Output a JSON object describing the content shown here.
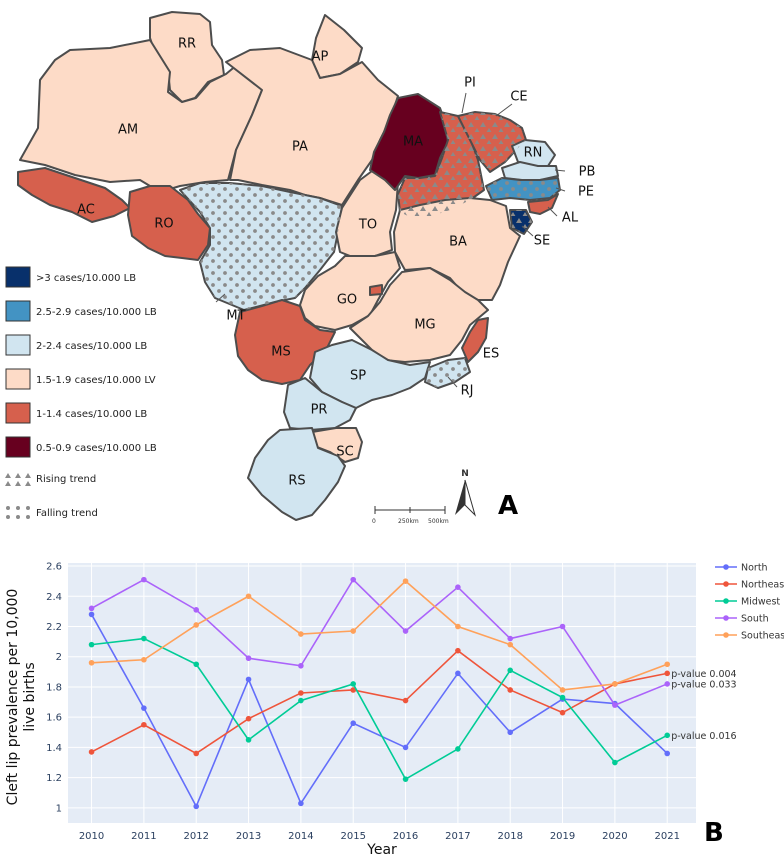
{
  "map": {
    "panel_letter": "A",
    "north_label": "N",
    "scale_labels": [
      "0",
      "250km",
      "500km"
    ],
    "states": [
      {
        "code": "RR",
        "category": "c4"
      },
      {
        "code": "AP",
        "category": "c4"
      },
      {
        "code": "AM",
        "category": "c4"
      },
      {
        "code": "PA",
        "category": "c4"
      },
      {
        "code": "AC",
        "category": "c5"
      },
      {
        "code": "RO",
        "category": "c5"
      },
      {
        "code": "MT",
        "category": "c3",
        "trend": "falling"
      },
      {
        "code": "TO",
        "category": "c4"
      },
      {
        "code": "MA",
        "category": "c6"
      },
      {
        "code": "PI",
        "category": "c5",
        "trend": "rising"
      },
      {
        "code": "CE",
        "category": "c5",
        "trend": "rising"
      },
      {
        "code": "RN",
        "category": "c3"
      },
      {
        "code": "PB",
        "category": "c3"
      },
      {
        "code": "PE",
        "category": "c2",
        "trend": "falling"
      },
      {
        "code": "AL",
        "category": "c5"
      },
      {
        "code": "SE",
        "category": "c1",
        "trend": "rising"
      },
      {
        "code": "BA",
        "category": "c4"
      },
      {
        "code": "GO",
        "category": "c4"
      },
      {
        "code": "MG",
        "category": "c4"
      },
      {
        "code": "ES",
        "category": "c5"
      },
      {
        "code": "MS",
        "category": "c5"
      },
      {
        "code": "SP",
        "category": "c3"
      },
      {
        "code": "RJ",
        "category": "c3",
        "trend": "falling"
      },
      {
        "code": "PR",
        "category": "c3"
      },
      {
        "code": "SC",
        "category": "c4"
      },
      {
        "code": "RS",
        "category": "c3"
      }
    ],
    "legend": [
      {
        "key": "c1",
        "label": ">3 cases/10.000 LB",
        "color": "#08306b"
      },
      {
        "key": "c2",
        "label": "2.5-2.9 cases/10.000 LB",
        "color": "#4393c3"
      },
      {
        "key": "c3",
        "label": "2-2.4 cases/10.000 LB",
        "color": "#d1e5f0"
      },
      {
        "key": "c4",
        "label": "1.5-1.9 cases/10.000 LV",
        "color": "#fddbc7"
      },
      {
        "key": "c5",
        "label": "1-1.4 cases/10.000 LB",
        "color": "#d6604d"
      },
      {
        "key": "c6",
        "label": "0.5-0.9 cases/10.000 LB",
        "color": "#67001f"
      }
    ],
    "trend_legend": {
      "rising": "Rising trend",
      "falling": "Falling trend"
    }
  },
  "chart_data": {
    "type": "line",
    "panel_letter": "B",
    "xlabel": "Year",
    "ylabel_lines": [
      "Cleft lip prevalence per 10,000",
      "live births"
    ],
    "x": [
      2010,
      2011,
      2012,
      2013,
      2014,
      2015,
      2016,
      2017,
      2018,
      2019,
      2020,
      2021
    ],
    "ylim": [
      0.9,
      2.62
    ],
    "yticks": [
      1,
      1.2,
      1.4,
      1.6,
      1.8,
      2,
      2.2,
      2.4,
      2.6
    ],
    "ytick_labels": [
      "1",
      "1.2",
      "1.4",
      "1.6",
      "1.8",
      "2",
      "2.2",
      "2.4",
      "2.6"
    ],
    "legend_position": "right",
    "series": [
      {
        "name": "North",
        "color": "#636efa",
        "values": [
          2.28,
          1.66,
          1.01,
          1.85,
          1.03,
          1.56,
          1.4,
          1.89,
          1.5,
          1.72,
          1.69,
          1.36
        ]
      },
      {
        "name": "Northeast",
        "color": "#ef553b",
        "values": [
          1.37,
          1.55,
          1.36,
          1.59,
          1.76,
          1.78,
          1.71,
          2.04,
          1.78,
          1.63,
          1.82,
          1.89
        ],
        "annotation": "p-value 0.004"
      },
      {
        "name": "Midwest",
        "color": "#00cc96",
        "values": [
          2.08,
          2.12,
          1.95,
          1.45,
          1.71,
          1.82,
          1.19,
          1.39,
          1.91,
          1.73,
          1.3,
          1.48
        ],
        "annotation": "p-value 0.016"
      },
      {
        "name": "South",
        "color": "#ab63fa",
        "values": [
          2.32,
          2.51,
          2.31,
          1.99,
          1.94,
          2.51,
          2.17,
          2.46,
          2.12,
          2.2,
          1.68,
          1.82
        ],
        "annotation": "p-value 0.033"
      },
      {
        "name": "Southeast",
        "color": "#ffa15a",
        "values": [
          1.96,
          1.98,
          2.21,
          2.4,
          2.15,
          2.17,
          2.5,
          2.2,
          2.08,
          1.78,
          1.82,
          1.95
        ]
      }
    ]
  }
}
